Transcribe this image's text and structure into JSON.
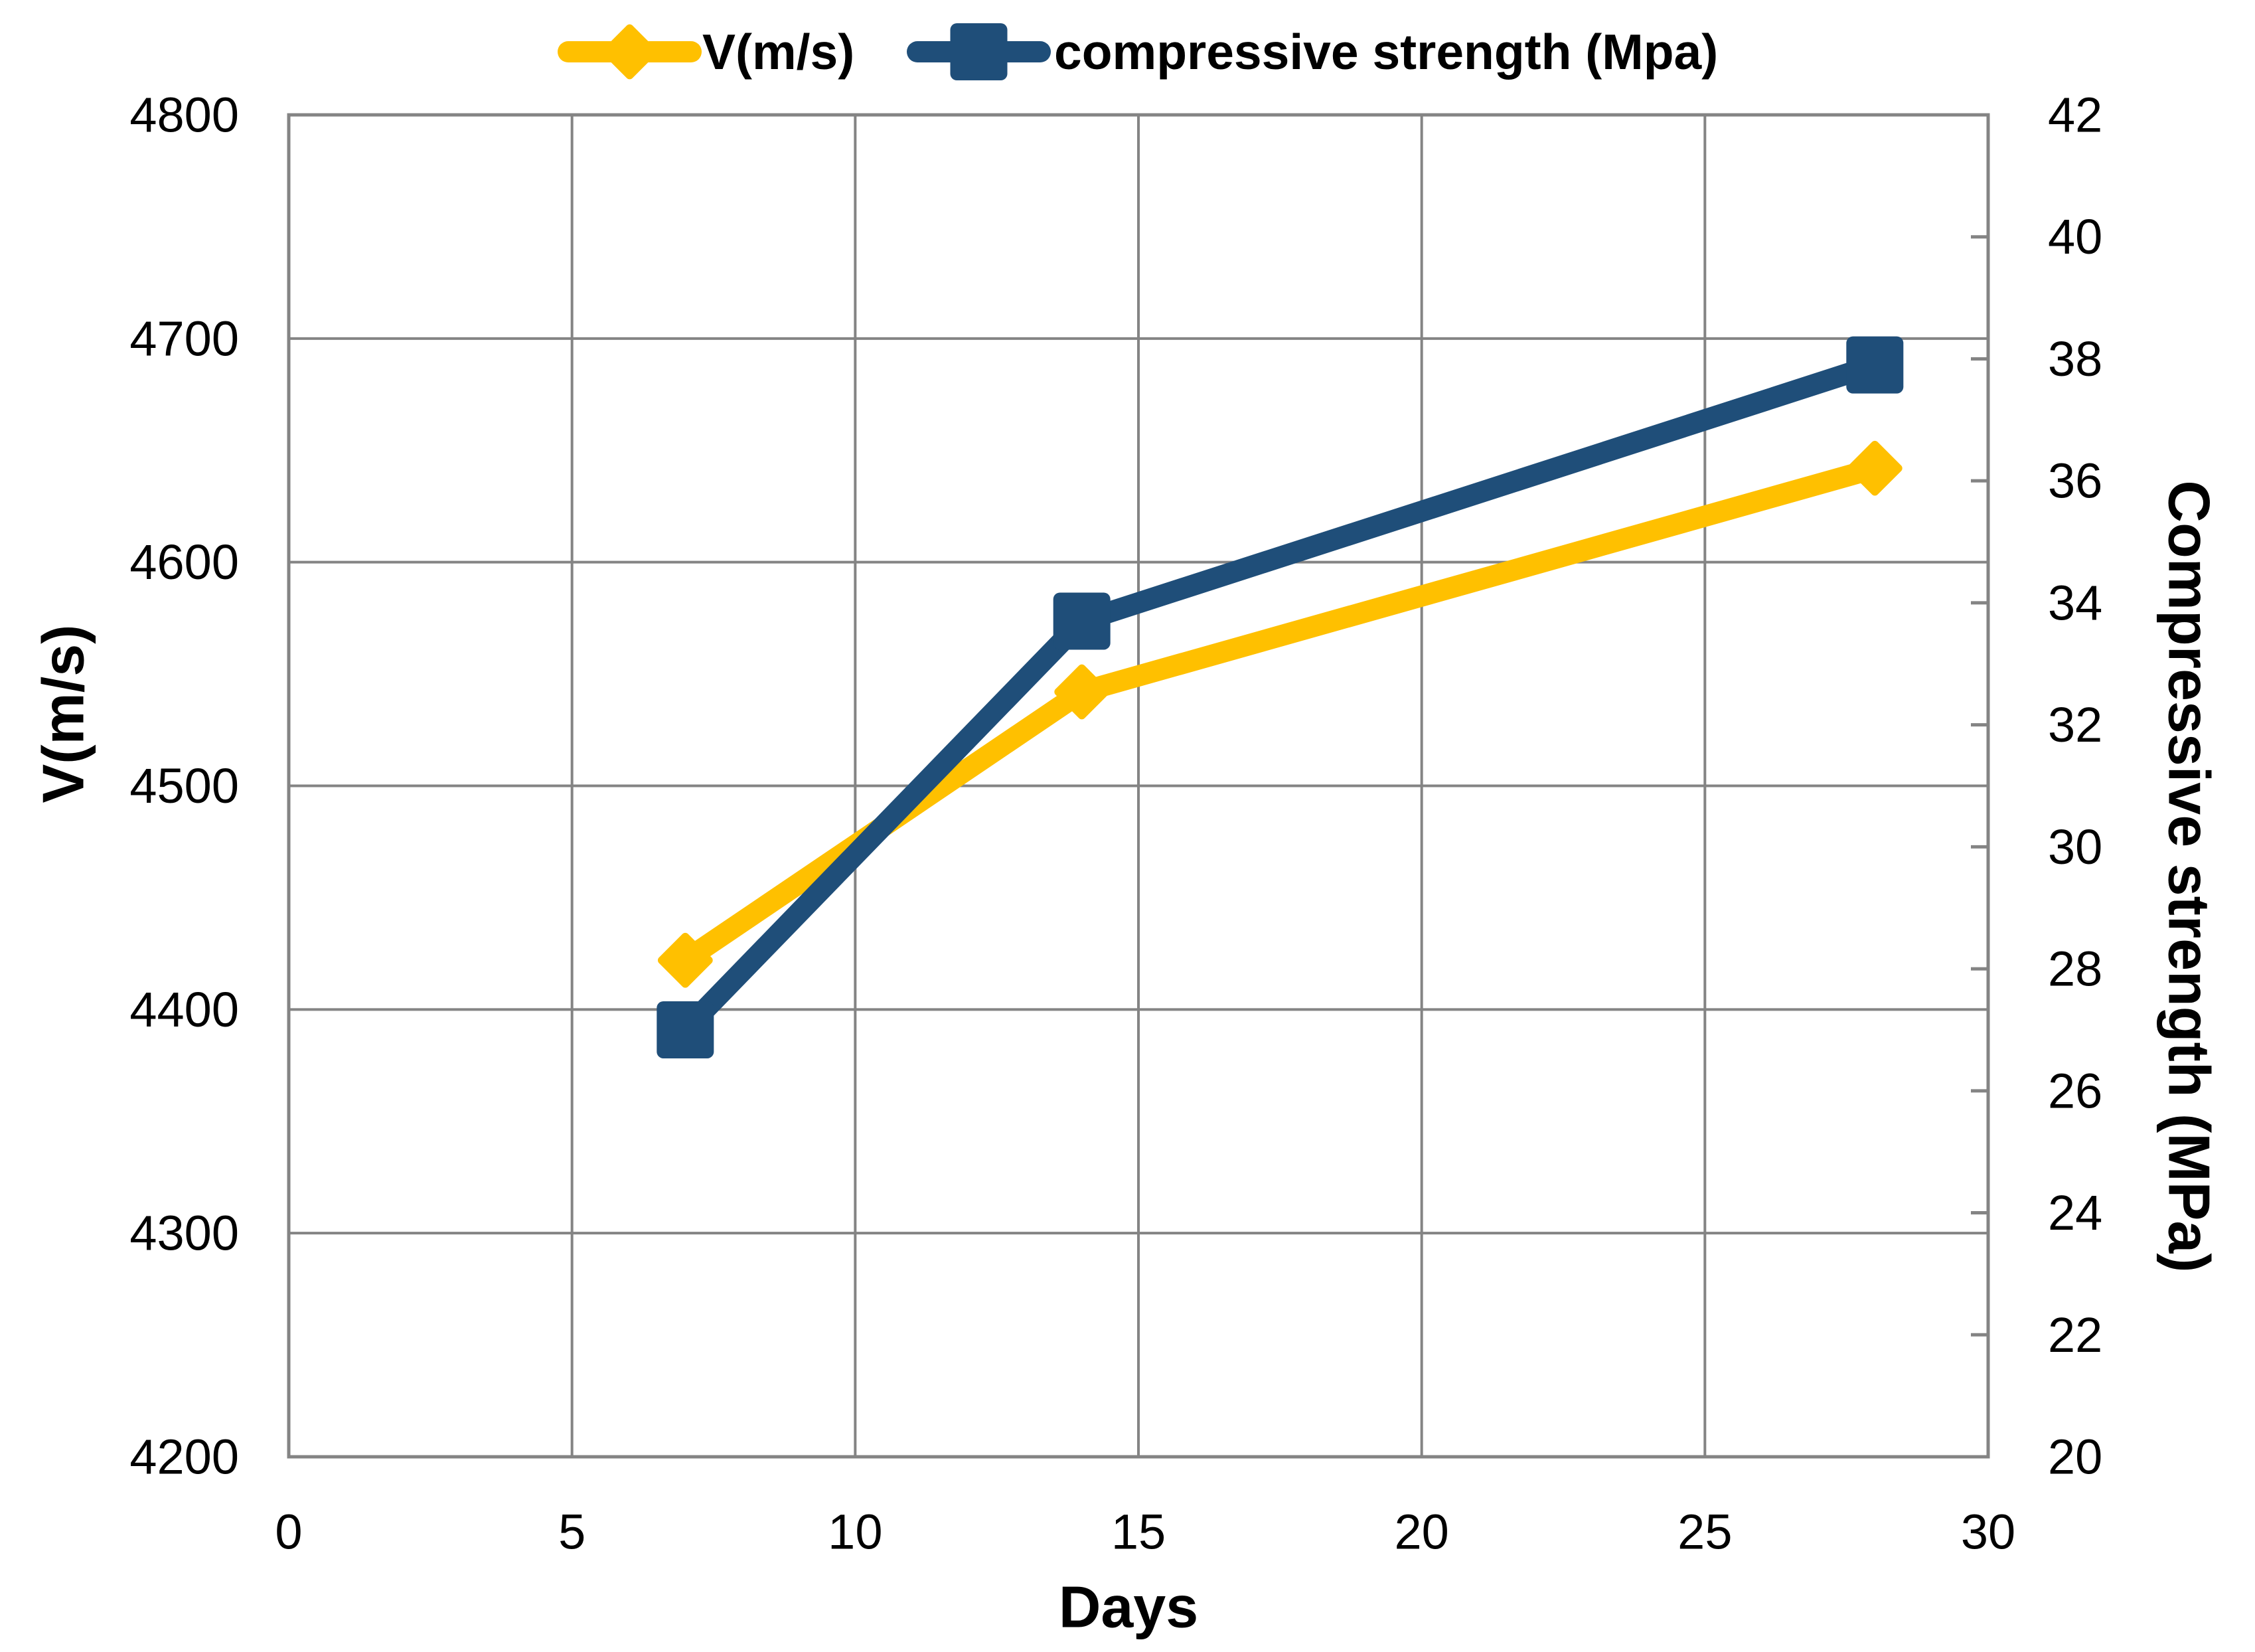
{
  "chart_data": {
    "type": "line",
    "title": "",
    "xlabel": "Days",
    "x": [
      7,
      14,
      28
    ],
    "x_axis": {
      "min": 0,
      "max": 30,
      "step": 5,
      "ticks": [
        0,
        5,
        10,
        15,
        20,
        25,
        30
      ],
      "title": "Days"
    },
    "left_axis": {
      "min": 4200,
      "max": 4800,
      "step": 100,
      "ticks": [
        4200,
        4300,
        4400,
        4500,
        4600,
        4700,
        4800
      ],
      "title": "V(m/s)"
    },
    "right_axis": {
      "min": 20,
      "max": 42,
      "step": 2,
      "ticks": [
        20,
        22,
        24,
        26,
        28,
        30,
        32,
        34,
        36,
        38,
        40,
        42
      ],
      "title": "Compressive strength (MPa)"
    },
    "series": [
      {
        "name": "V(m/s)",
        "axis": "left",
        "marker": "diamond",
        "color": "#FFC000",
        "values": [
          4422,
          4542,
          4642
        ]
      },
      {
        "name": "compressive strength (Mpa)",
        "axis": "right",
        "marker": "square",
        "color": "#1F4E79",
        "values": [
          27,
          33.7,
          37.9
        ]
      }
    ],
    "legend_position": "top",
    "grid": {
      "horizontal": true,
      "vertical": true,
      "color": "#848484"
    },
    "axis_line_color": "#848484",
    "text_color": "#000000",
    "background_color": "#FFFFFF"
  }
}
